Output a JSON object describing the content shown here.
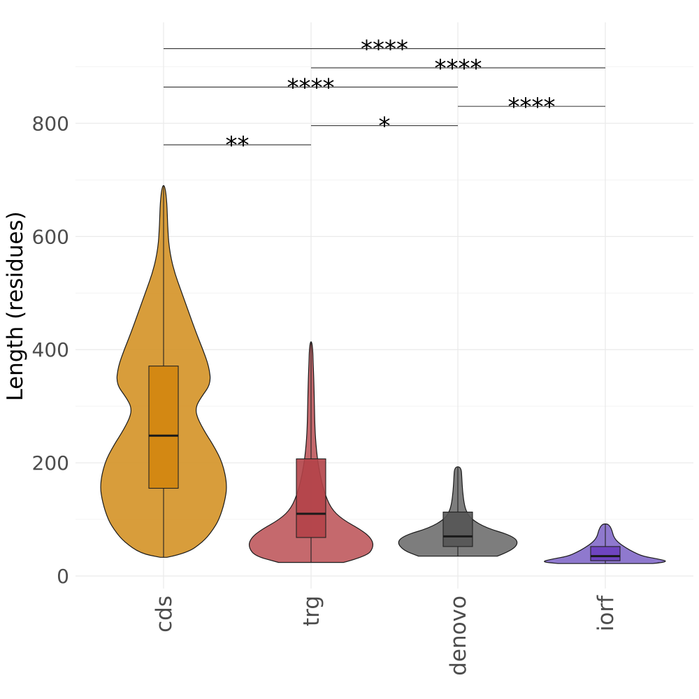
{
  "chart_data": {
    "type": "violin",
    "ylabel": "Length (residues)",
    "xlabel": "",
    "ylim": [
      -20,
      980
    ],
    "yticks": [
      0,
      200,
      400,
      600,
      800
    ],
    "grid": true,
    "categories": [
      "cds",
      "trg",
      "denovo",
      "iorf"
    ],
    "groups": [
      {
        "name": "cds",
        "color": "#d38f20",
        "box_color": "#d3860f",
        "min": 33,
        "q1": 155,
        "median": 248,
        "q3": 371,
        "max": 690,
        "density": [
          [
            33,
            0.05
          ],
          [
            40,
            0.34
          ],
          [
            60,
            0.58
          ],
          [
            80,
            0.72
          ],
          [
            100,
            0.82
          ],
          [
            130,
            0.9
          ],
          [
            160,
            0.94
          ],
          [
            200,
            0.87
          ],
          [
            230,
            0.74
          ],
          [
            260,
            0.58
          ],
          [
            285,
            0.48
          ],
          [
            300,
            0.48
          ],
          [
            315,
            0.55
          ],
          [
            340,
            0.7
          ],
          [
            370,
            0.67
          ],
          [
            400,
            0.58
          ],
          [
            430,
            0.48
          ],
          [
            460,
            0.39
          ],
          [
            500,
            0.27
          ],
          [
            540,
            0.15
          ],
          [
            580,
            0.08
          ],
          [
            620,
            0.06
          ],
          [
            660,
            0.05
          ],
          [
            690,
            0.02
          ]
        ]
      },
      {
        "name": "trg",
        "color": "#bd5459",
        "box_color": "#b34348",
        "min": 24,
        "q1": 68,
        "median": 110,
        "q3": 207,
        "max": 414,
        "density": [
          [
            24,
            0.48
          ],
          [
            35,
            0.82
          ],
          [
            50,
            0.92
          ],
          [
            65,
            0.9
          ],
          [
            80,
            0.76
          ],
          [
            100,
            0.46
          ],
          [
            120,
            0.29
          ],
          [
            150,
            0.19
          ],
          [
            180,
            0.13
          ],
          [
            210,
            0.09
          ],
          [
            250,
            0.06
          ],
          [
            300,
            0.05
          ],
          [
            350,
            0.04
          ],
          [
            380,
            0.03
          ],
          [
            400,
            0.025
          ],
          [
            414,
            0.01
          ]
        ]
      },
      {
        "name": "denovo",
        "color": "#6b6b6b",
        "box_color": "#555555",
        "min": 35,
        "q1": 52,
        "median": 70,
        "q3": 113,
        "max": 193,
        "density": [
          [
            35,
            0.58
          ],
          [
            45,
            0.8
          ],
          [
            60,
            0.9
          ],
          [
            72,
            0.78
          ],
          [
            85,
            0.42
          ],
          [
            100,
            0.2
          ],
          [
            115,
            0.12
          ],
          [
            130,
            0.09
          ],
          [
            150,
            0.07
          ],
          [
            170,
            0.06
          ],
          [
            193,
            0.05
          ]
        ]
      },
      {
        "name": "iorf",
        "color": "#8066c7",
        "box_color": "#6b3fbf",
        "min": 22,
        "q1": 27,
        "median": 35,
        "q3": 52,
        "max": 92,
        "density": [
          [
            22,
            0.7
          ],
          [
            25,
            0.95
          ],
          [
            30,
            0.78
          ],
          [
            35,
            0.55
          ],
          [
            42,
            0.42
          ],
          [
            50,
            0.3
          ],
          [
            60,
            0.18
          ],
          [
            70,
            0.12
          ],
          [
            80,
            0.1
          ],
          [
            88,
            0.07
          ],
          [
            92,
            0.03
          ]
        ]
      }
    ],
    "comparisons": [
      {
        "from": "cds",
        "to": "iorf",
        "y": 932,
        "label": "****"
      },
      {
        "from": "trg",
        "to": "iorf",
        "y": 898,
        "label": "****"
      },
      {
        "from": "cds",
        "to": "denovo",
        "y": 864,
        "label": "****"
      },
      {
        "from": "denovo",
        "to": "iorf",
        "y": 830,
        "label": "****"
      },
      {
        "from": "trg",
        "to": "denovo",
        "y": 796,
        "label": "*"
      },
      {
        "from": "cds",
        "to": "trg",
        "y": 762,
        "label": "**"
      }
    ]
  }
}
